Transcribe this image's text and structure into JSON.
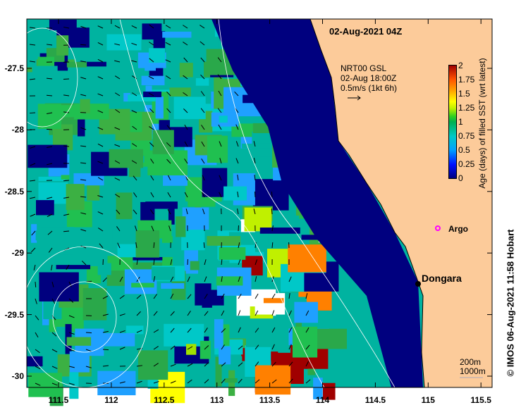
{
  "title": "02-Aug-2021 04Z",
  "current_info": {
    "line1": "NRT00 GSL",
    "line2": "02-Aug 18:00Z",
    "line3": "0.5m/s (1kt 6h)"
  },
  "colorbar": {
    "title": "Age (days) of filled SST (wrt latest)",
    "ticks": [
      "2",
      "1.75",
      "1.5",
      "1.25",
      "1",
      "0.75",
      "0.5",
      "0.25",
      "0"
    ]
  },
  "x_ticks": [
    "111.5",
    "112",
    "112.5",
    "113",
    "113.5",
    "114",
    "114.5",
    "115",
    "115.5"
  ],
  "y_ticks": [
    "-27.5",
    "-28",
    "-28.5",
    "-29",
    "-29.5",
    "-30"
  ],
  "labels": {
    "argo": "Argo",
    "dongara": "Dongara"
  },
  "legend": {
    "iso1": "200m",
    "iso2": "1000m"
  },
  "credit": "© IMOS 06-Aug-2021 11:58 Hobart",
  "colors": {
    "land": "#fccb9a",
    "ocean_deep": "#00007f",
    "argo": "#ff00ff"
  }
}
